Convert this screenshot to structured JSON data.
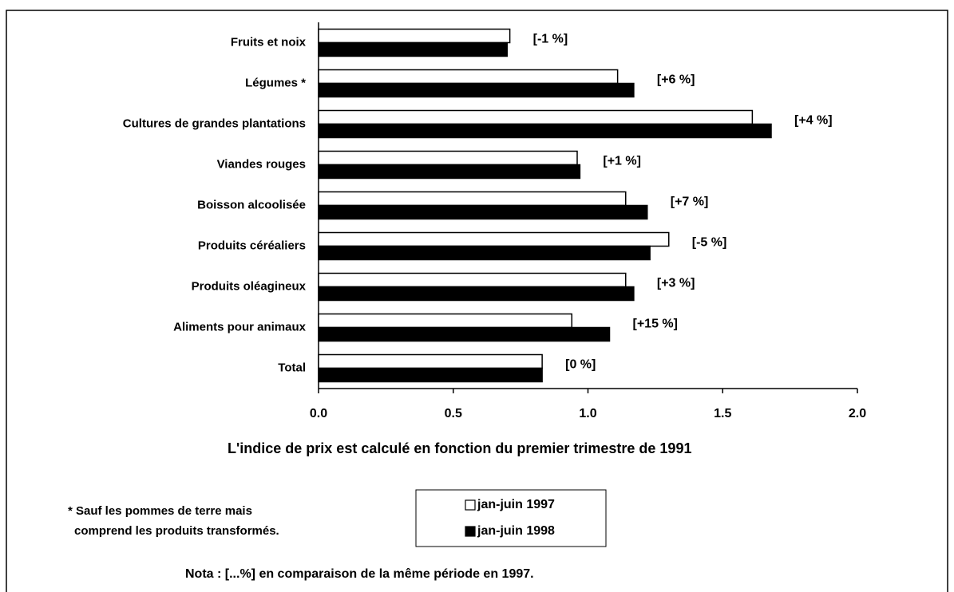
{
  "chart_data": {
    "type": "hbar",
    "categories": [
      "Fruits et noix",
      "Légumes *",
      "Cultures de grandes plantations",
      "Viandes rouges",
      "Boisson alcoolisée",
      "Produits céréaliers",
      "Produits oléagineux",
      "Aliments pour animaux",
      "Total"
    ],
    "series": [
      {
        "name": "jan-juin 1997",
        "color": "#ffffff",
        "values": [
          0.71,
          1.11,
          1.61,
          0.96,
          1.14,
          1.3,
          1.14,
          0.94,
          0.83
        ]
      },
      {
        "name": "jan-juin 1998",
        "color": "#000000",
        "values": [
          0.7,
          1.17,
          1.68,
          0.97,
          1.22,
          1.23,
          1.17,
          1.08,
          0.83
        ]
      }
    ],
    "change_labels": [
      "[-1 %]",
      "[+6 %]",
      "[+4 %]",
      "[+1 %]",
      "[+7 %]",
      "[-5 %]",
      "[+3 %]",
      "[+15 %]",
      "[0 %]"
    ],
    "xlim": [
      0,
      2
    ],
    "xticks": [
      {
        "value": 0,
        "label": "0.0"
      },
      {
        "value": 0.5,
        "label": "0.5"
      },
      {
        "value": 1,
        "label": "1.0"
      },
      {
        "value": 1.5,
        "label": "1.5"
      },
      {
        "value": 2,
        "label": "2.0"
      }
    ],
    "x_label": "L'indice de prix est calculé en fonction du premier trimestre de 1991",
    "footnote": [
      "* Sauf les pommes de terre mais",
      "comprend les produits transformés."
    ],
    "note": "Nota : [...%] en comparaison de la même période en 1997."
  }
}
